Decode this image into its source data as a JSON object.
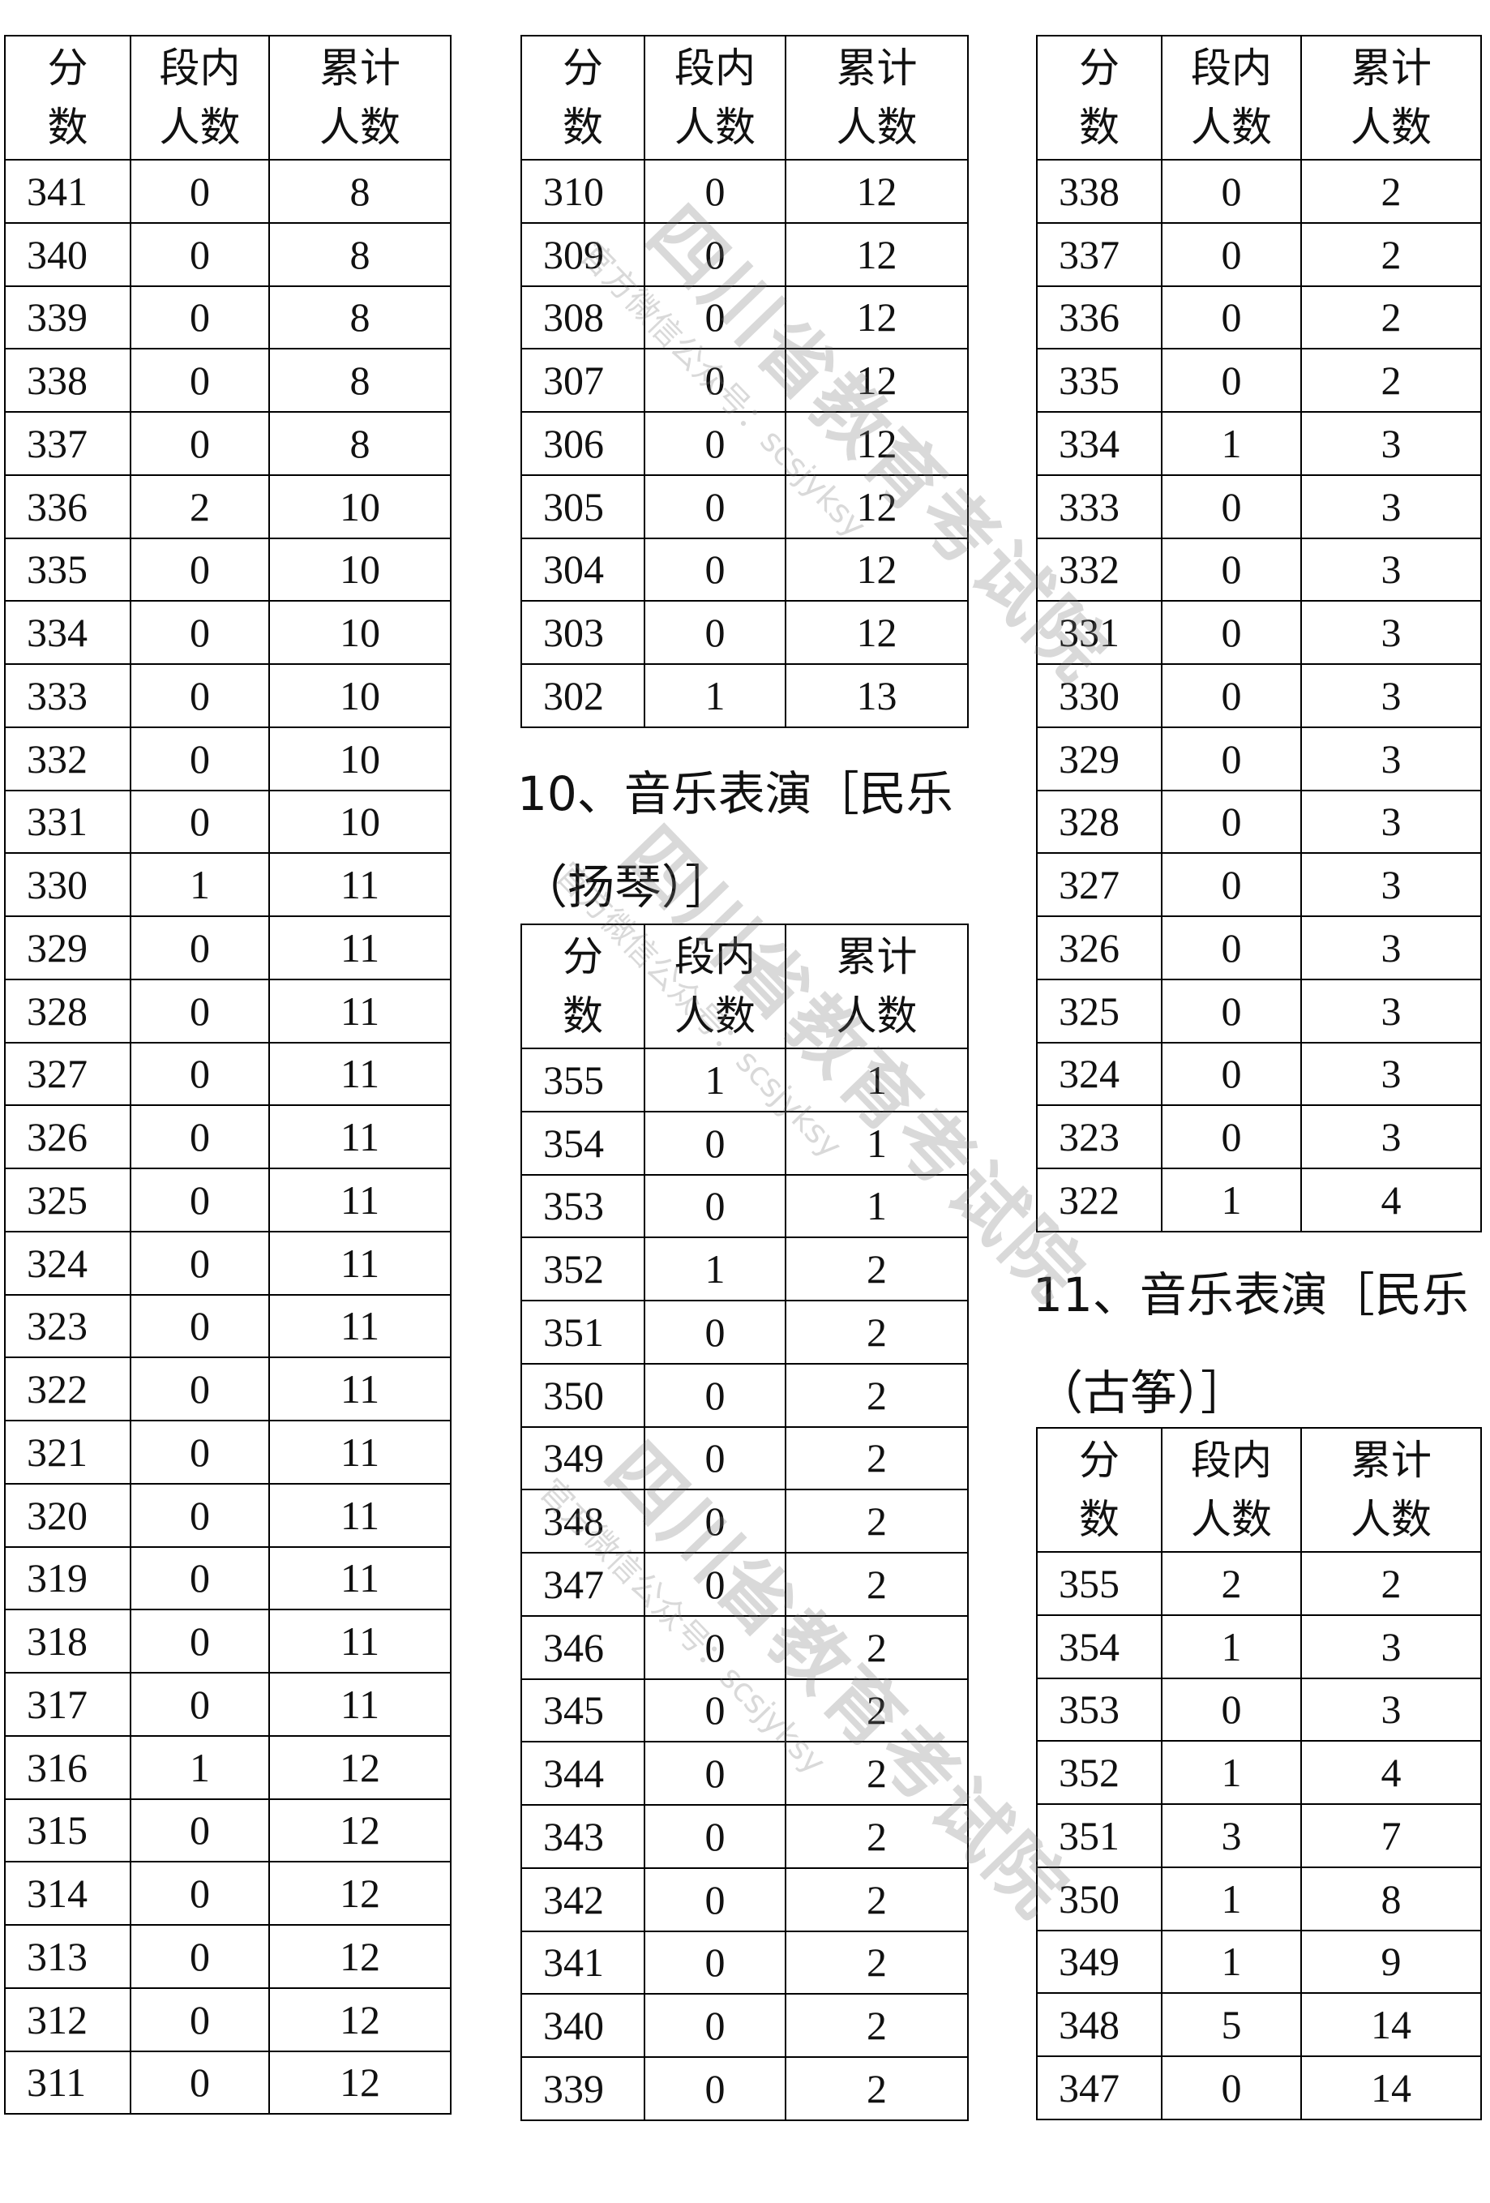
{
  "sections": [
    {
      "table": {
        "header": [
          [
            "分",
            "数"
          ],
          [
            "段内",
            "人数"
          ],
          [
            "累计",
            "人数"
          ]
        ],
        "rows": [
          [
            341,
            0,
            8
          ],
          [
            340,
            0,
            8
          ],
          [
            339,
            0,
            8
          ],
          [
            338,
            0,
            8
          ],
          [
            337,
            0,
            8
          ],
          [
            336,
            2,
            10
          ],
          [
            335,
            0,
            10
          ],
          [
            334,
            0,
            10
          ],
          [
            333,
            0,
            10
          ],
          [
            332,
            0,
            10
          ],
          [
            331,
            0,
            10
          ],
          [
            330,
            1,
            11
          ],
          [
            329,
            0,
            11
          ],
          [
            328,
            0,
            11
          ],
          [
            327,
            0,
            11
          ],
          [
            326,
            0,
            11
          ],
          [
            325,
            0,
            11
          ],
          [
            324,
            0,
            11
          ],
          [
            323,
            0,
            11
          ],
          [
            322,
            0,
            11
          ],
          [
            321,
            0,
            11
          ],
          [
            320,
            0,
            11
          ],
          [
            319,
            0,
            11
          ],
          [
            318,
            0,
            11
          ],
          [
            317,
            0,
            11
          ],
          [
            316,
            1,
            12
          ],
          [
            315,
            0,
            12
          ],
          [
            314,
            0,
            12
          ],
          [
            313,
            0,
            12
          ],
          [
            312,
            0,
            12
          ],
          [
            311,
            0,
            12
          ]
        ]
      }
    },
    {
      "table": {
        "header": [
          [
            "分",
            "数"
          ],
          [
            "段内",
            "人数"
          ],
          [
            "累计",
            "人数"
          ]
        ],
        "rows": [
          [
            310,
            0,
            12
          ],
          [
            309,
            0,
            12
          ],
          [
            308,
            0,
            12
          ],
          [
            307,
            0,
            12
          ],
          [
            306,
            0,
            12
          ],
          [
            305,
            0,
            12
          ],
          [
            304,
            0,
            12
          ],
          [
            303,
            0,
            12
          ],
          [
            302,
            1,
            13
          ]
        ]
      }
    },
    {
      "heading": [
        "10、音乐表演［民乐",
        "（扬琴）］"
      ],
      "table": {
        "header": [
          [
            "分",
            "数"
          ],
          [
            "段内",
            "人数"
          ],
          [
            "累计",
            "人数"
          ]
        ],
        "rows": [
          [
            355,
            1,
            1
          ],
          [
            354,
            0,
            1
          ],
          [
            353,
            0,
            1
          ],
          [
            352,
            1,
            2
          ],
          [
            351,
            0,
            2
          ],
          [
            350,
            0,
            2
          ],
          [
            349,
            0,
            2
          ],
          [
            348,
            0,
            2
          ],
          [
            347,
            0,
            2
          ],
          [
            346,
            0,
            2
          ],
          [
            345,
            0,
            2
          ],
          [
            344,
            0,
            2
          ],
          [
            343,
            0,
            2
          ],
          [
            342,
            0,
            2
          ],
          [
            341,
            0,
            2
          ],
          [
            340,
            0,
            2
          ],
          [
            339,
            0,
            2
          ]
        ]
      }
    },
    {
      "table": {
        "header": [
          [
            "分",
            "数"
          ],
          [
            "段内",
            "人数"
          ],
          [
            "累计",
            "人数"
          ]
        ],
        "rows": [
          [
            338,
            0,
            2
          ],
          [
            337,
            0,
            2
          ],
          [
            336,
            0,
            2
          ],
          [
            335,
            0,
            2
          ],
          [
            334,
            1,
            3
          ],
          [
            333,
            0,
            3
          ],
          [
            332,
            0,
            3
          ],
          [
            331,
            0,
            3
          ],
          [
            330,
            0,
            3
          ],
          [
            329,
            0,
            3
          ],
          [
            328,
            0,
            3
          ],
          [
            327,
            0,
            3
          ],
          [
            326,
            0,
            3
          ],
          [
            325,
            0,
            3
          ],
          [
            324,
            0,
            3
          ],
          [
            323,
            0,
            3
          ],
          [
            322,
            1,
            4
          ]
        ]
      }
    },
    {
      "heading": [
        "11、音乐表演［民乐",
        "（古筝）］"
      ],
      "table": {
        "header": [
          [
            "分",
            "数"
          ],
          [
            "段内",
            "人数"
          ],
          [
            "累计",
            "人数"
          ]
        ],
        "rows": [
          [
            355,
            2,
            2
          ],
          [
            354,
            1,
            3
          ],
          [
            353,
            0,
            3
          ],
          [
            352,
            1,
            4
          ],
          [
            351,
            3,
            7
          ],
          [
            350,
            1,
            8
          ],
          [
            349,
            1,
            9
          ],
          [
            348,
            5,
            14
          ],
          [
            347,
            0,
            14
          ]
        ]
      }
    }
  ],
  "watermark": {
    "title": "四川省教育考试院",
    "subtitle": "官方微信公众号：scsjyksy"
  }
}
